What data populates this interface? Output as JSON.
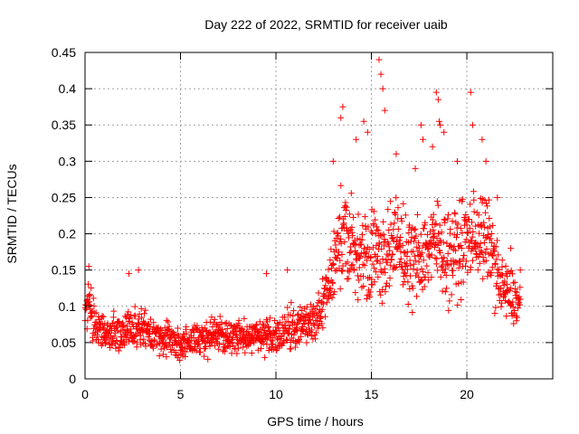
{
  "chart_data": {
    "type": "scatter",
    "title": "Day 222 of 2022, SRMTID for receiver uaib",
    "xlabel": "GPS time / hours",
    "ylabel": "SRMTID / TECUs",
    "xlim": [
      0,
      24.5
    ],
    "ylim": [
      0,
      0.45
    ],
    "xticks": [
      0,
      5,
      10,
      15,
      20
    ],
    "xtick_labels": [
      "0",
      "5",
      "10",
      "15",
      "20"
    ],
    "yticks": [
      0,
      0.05,
      0.1,
      0.15,
      0.2,
      0.25,
      0.3,
      0.35,
      0.4,
      0.45
    ],
    "ytick_labels": [
      "0",
      "0.05",
      "0.1",
      "0.15",
      "0.2",
      "0.25",
      "0.3",
      "0.35",
      "0.4",
      "0.45"
    ],
    "grid": true,
    "marker": "+",
    "color": "#ff0000",
    "series": [
      {
        "name": "SRMTID",
        "profile_x": [
          0,
          0.2,
          0.5,
          1,
          2,
          3,
          4,
          5,
          6,
          7,
          8,
          9,
          9.5,
          10,
          10.5,
          11,
          11.5,
          12,
          12.5,
          13,
          13.3,
          13.6,
          14,
          14.5,
          15,
          15.5,
          16,
          16.5,
          17,
          17.5,
          18,
          18.5,
          19,
          19.5,
          20,
          20.5,
          21,
          21.3,
          21.7,
          22,
          22.5,
          22.8
        ],
        "profile_median": [
          0.1,
          0.11,
          0.075,
          0.06,
          0.065,
          0.07,
          0.055,
          0.05,
          0.055,
          0.06,
          0.06,
          0.06,
          0.055,
          0.06,
          0.065,
          0.07,
          0.075,
          0.08,
          0.1,
          0.15,
          0.2,
          0.19,
          0.18,
          0.17,
          0.175,
          0.17,
          0.18,
          0.185,
          0.16,
          0.17,
          0.18,
          0.19,
          0.17,
          0.175,
          0.19,
          0.2,
          0.19,
          0.18,
          0.13,
          0.12,
          0.11,
          0.1
        ],
        "profile_spread": [
          0.02,
          0.025,
          0.025,
          0.018,
          0.02,
          0.02,
          0.018,
          0.016,
          0.018,
          0.018,
          0.018,
          0.02,
          0.02,
          0.02,
          0.02,
          0.02,
          0.022,
          0.025,
          0.03,
          0.035,
          0.045,
          0.045,
          0.045,
          0.045,
          0.045,
          0.045,
          0.045,
          0.045,
          0.045,
          0.045,
          0.045,
          0.045,
          0.045,
          0.045,
          0.045,
          0.045,
          0.045,
          0.04,
          0.035,
          0.03,
          0.028,
          0.025
        ],
        "peaks": [
          [
            0.2,
            0.155
          ],
          [
            2.3,
            0.145
          ],
          [
            2.8,
            0.15
          ],
          [
            9.5,
            0.145
          ],
          [
            10.6,
            0.15
          ],
          [
            13.5,
            0.375
          ],
          [
            13.4,
            0.36
          ],
          [
            13.0,
            0.3
          ],
          [
            14.2,
            0.33
          ],
          [
            14.6,
            0.355
          ],
          [
            14.8,
            0.34
          ],
          [
            15.4,
            0.44
          ],
          [
            15.5,
            0.42
          ],
          [
            15.6,
            0.4
          ],
          [
            15.7,
            0.37
          ],
          [
            16.3,
            0.31
          ],
          [
            17.3,
            0.29
          ],
          [
            17.6,
            0.35
          ],
          [
            17.7,
            0.33
          ],
          [
            18.2,
            0.32
          ],
          [
            18.4,
            0.395
          ],
          [
            18.5,
            0.385
          ],
          [
            18.55,
            0.355
          ],
          [
            18.6,
            0.35
          ],
          [
            18.8,
            0.34
          ],
          [
            19.5,
            0.3
          ],
          [
            20.2,
            0.395
          ],
          [
            20.3,
            0.35
          ],
          [
            20.8,
            0.33
          ],
          [
            21.0,
            0.3
          ],
          [
            21.6,
            0.25
          ],
          [
            22.3,
            0.18
          ],
          [
            22.8,
            0.15
          ]
        ],
        "n_points": 1500
      }
    ]
  }
}
